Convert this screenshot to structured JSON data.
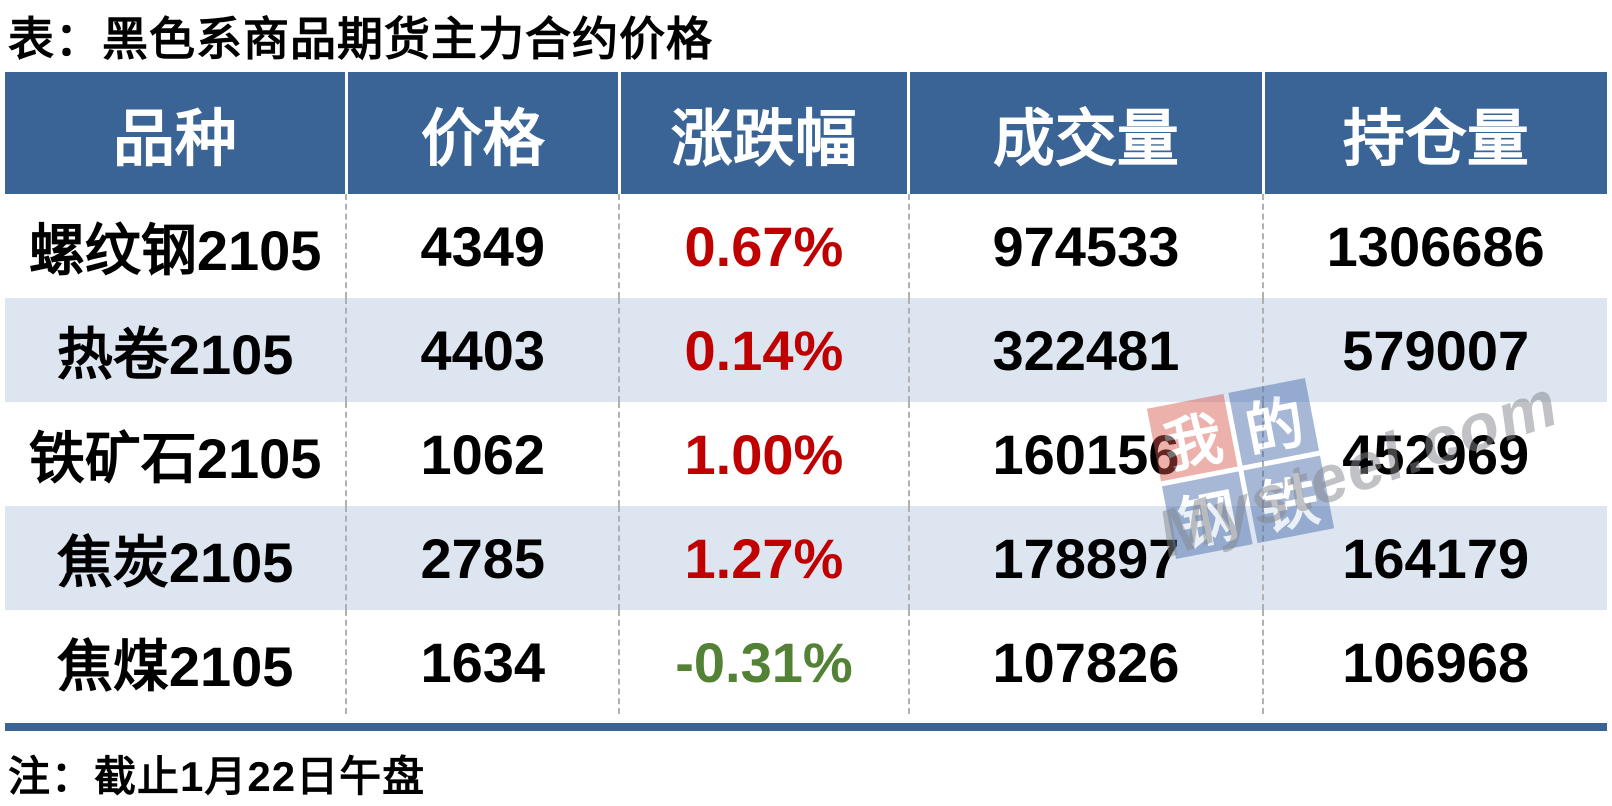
{
  "chart_data": {
    "type": "table",
    "title": "表：黑色系商品期货主力合约价格",
    "note": "注：截止1月22日午盘",
    "columns": [
      "品种",
      "价格",
      "涨跌幅",
      "成交量",
      "持仓量"
    ],
    "rows": [
      {
        "variety": "螺纹钢2105",
        "price": "4349",
        "change": "0.67%",
        "direction": "up",
        "volume": "974533",
        "open_interest": "1306686"
      },
      {
        "variety": "热卷2105",
        "price": "4403",
        "change": "0.14%",
        "direction": "up",
        "volume": "322481",
        "open_interest": "579007"
      },
      {
        "variety": "铁矿石2105",
        "price": "1062",
        "change": "1.00%",
        "direction": "up",
        "volume": "160156",
        "open_interest": "452969"
      },
      {
        "variety": "焦炭2105",
        "price": "2785",
        "change": "1.27%",
        "direction": "up",
        "volume": "178897",
        "open_interest": "164179"
      },
      {
        "variety": "焦煤2105",
        "price": "1634",
        "change": "-0.31%",
        "direction": "down",
        "volume": "107826",
        "open_interest": "106968"
      }
    ]
  },
  "colors": {
    "header_bg": "#3A6496",
    "stripe_bg": "#DCE5F0",
    "up": "#C00000",
    "down": "#538135"
  },
  "watermark": {
    "tiles": [
      "我",
      "的",
      "钢",
      "铁"
    ],
    "domain": "Mysteel.com"
  }
}
